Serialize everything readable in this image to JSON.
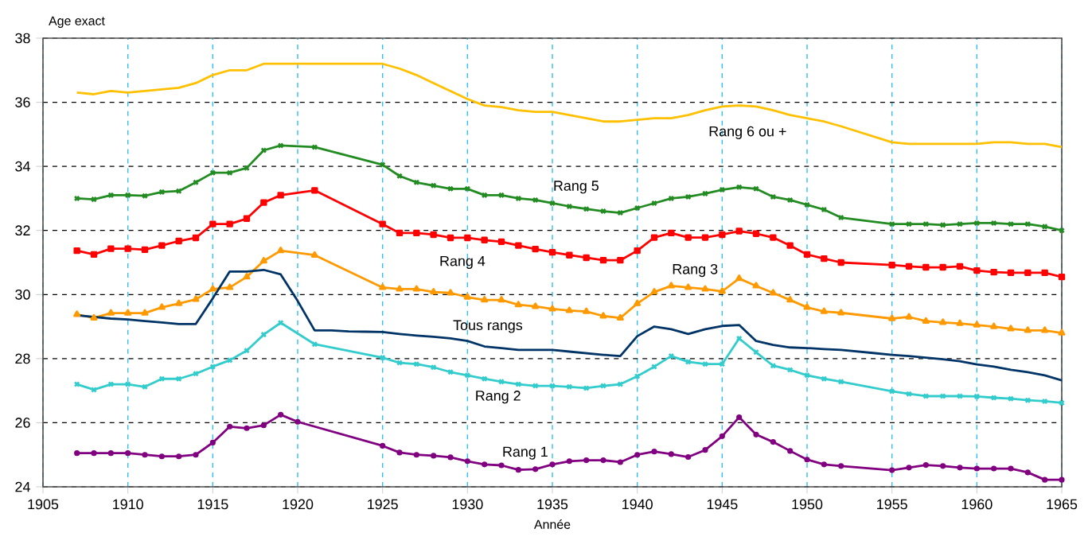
{
  "chart_data": {
    "type": "line",
    "xlabel": "Année",
    "ylabel": "Age exact",
    "x": [
      1907,
      1908,
      1909,
      1910,
      1911,
      1912,
      1913,
      1914,
      1915,
      1916,
      1917,
      1918,
      1919,
      1920,
      1921,
      1922,
      1923,
      1924,
      1925,
      1926,
      1927,
      1928,
      1929,
      1930,
      1931,
      1932,
      1933,
      1934,
      1935,
      1936,
      1937,
      1938,
      1939,
      1940,
      1941,
      1942,
      1943,
      1944,
      1945,
      1946,
      1947,
      1948,
      1949,
      1950,
      1951,
      1952,
      1953,
      1954,
      1955,
      1956,
      1957,
      1958,
      1959,
      1960,
      1961,
      1962,
      1963,
      1964,
      1965
    ],
    "xlim": [
      1905,
      1965
    ],
    "xticks": [
      1905,
      1910,
      1915,
      1920,
      1925,
      1930,
      1935,
      1940,
      1945,
      1950,
      1955,
      1960,
      1965
    ],
    "ylim": [
      24,
      38
    ],
    "yticks": [
      24,
      26,
      28,
      30,
      32,
      34,
      36,
      38
    ],
    "grid": true,
    "legend": false,
    "series": [
      {
        "name": "Rang 6 ou +",
        "color": "#ffc000",
        "marker": "none",
        "x": [
          1907,
          1908,
          1909,
          1910,
          1911,
          1912,
          1913,
          1914,
          1915,
          1916,
          1917,
          1918,
          1919,
          1925,
          1926,
          1927,
          1928,
          1929,
          1930,
          1931,
          1932,
          1933,
          1934,
          1935,
          1936,
          1937,
          1938,
          1939,
          1940,
          1941,
          1942,
          1943,
          1944,
          1945,
          1946,
          1947,
          1948,
          1949,
          1950,
          1951,
          1952,
          1955,
          1956,
          1957,
          1958,
          1959,
          1960,
          1961,
          1962,
          1963,
          1964,
          1965
        ],
        "values": [
          36.3,
          36.25,
          36.35,
          36.3,
          36.35,
          36.4,
          36.45,
          36.6,
          36.85,
          37.0,
          37.0,
          37.2,
          37.2,
          37.2,
          37.05,
          36.85,
          36.6,
          36.35,
          36.1,
          35.9,
          35.85,
          35.75,
          35.7,
          35.7,
          35.6,
          35.5,
          35.4,
          35.4,
          35.45,
          35.5,
          35.5,
          35.6,
          35.75,
          35.87,
          35.9,
          35.87,
          35.75,
          35.6,
          35.5,
          35.4,
          35.25,
          34.75,
          34.7,
          34.7,
          34.7,
          34.7,
          34.7,
          34.75,
          34.75,
          34.7,
          34.7,
          34.6
        ]
      },
      {
        "name": "Rang 5",
        "color": "#228b22",
        "marker": "cross",
        "x": [
          1907,
          1908,
          1909,
          1910,
          1911,
          1912,
          1913,
          1914,
          1915,
          1916,
          1917,
          1918,
          1919,
          1921,
          1925,
          1926,
          1927,
          1928,
          1929,
          1930,
          1931,
          1932,
          1933,
          1934,
          1935,
          1936,
          1937,
          1938,
          1939,
          1940,
          1941,
          1942,
          1943,
          1944,
          1945,
          1946,
          1947,
          1948,
          1949,
          1950,
          1951,
          1952,
          1955,
          1956,
          1957,
          1958,
          1959,
          1960,
          1961,
          1962,
          1963,
          1964,
          1965
        ],
        "values": [
          33.0,
          32.97,
          33.1,
          33.1,
          33.08,
          33.2,
          33.23,
          33.5,
          33.8,
          33.8,
          33.95,
          34.5,
          34.65,
          34.6,
          34.05,
          33.7,
          33.5,
          33.4,
          33.3,
          33.3,
          33.1,
          33.1,
          33.0,
          32.95,
          32.85,
          32.75,
          32.67,
          32.6,
          32.55,
          32.7,
          32.85,
          33.0,
          33.05,
          33.15,
          33.27,
          33.35,
          33.3,
          33.05,
          32.95,
          32.8,
          32.65,
          32.4,
          32.2,
          32.2,
          32.2,
          32.17,
          32.2,
          32.23,
          32.23,
          32.2,
          32.2,
          32.12,
          32.0
        ]
      },
      {
        "name": "Rang 4",
        "color": "#ff0000",
        "marker": "square",
        "x": [
          1907,
          1908,
          1909,
          1910,
          1911,
          1912,
          1913,
          1914,
          1915,
          1916,
          1917,
          1918,
          1919,
          1921,
          1925,
          1926,
          1927,
          1928,
          1929,
          1930,
          1931,
          1932,
          1933,
          1934,
          1935,
          1936,
          1937,
          1938,
          1939,
          1940,
          1941,
          1942,
          1943,
          1944,
          1945,
          1946,
          1947,
          1948,
          1949,
          1950,
          1951,
          1952,
          1955,
          1956,
          1957,
          1958,
          1959,
          1960,
          1961,
          1962,
          1963,
          1964,
          1965
        ],
        "values": [
          31.37,
          31.25,
          31.43,
          31.43,
          31.4,
          31.53,
          31.67,
          31.77,
          32.2,
          32.2,
          32.37,
          32.87,
          33.1,
          33.25,
          32.2,
          31.92,
          31.92,
          31.87,
          31.77,
          31.77,
          31.7,
          31.65,
          31.53,
          31.42,
          31.32,
          31.23,
          31.15,
          31.07,
          31.07,
          31.37,
          31.78,
          31.92,
          31.78,
          31.78,
          31.87,
          31.98,
          31.9,
          31.78,
          31.53,
          31.25,
          31.12,
          31.0,
          30.92,
          30.88,
          30.85,
          30.85,
          30.88,
          30.75,
          30.7,
          30.68,
          30.68,
          30.68,
          30.55
        ]
      },
      {
        "name": "Rang 3",
        "color": "#ff9900",
        "marker": "triangle",
        "x": [
          1907,
          1908,
          1909,
          1910,
          1911,
          1912,
          1913,
          1914,
          1915,
          1916,
          1917,
          1918,
          1919,
          1921,
          1925,
          1926,
          1927,
          1928,
          1929,
          1930,
          1931,
          1932,
          1933,
          1934,
          1935,
          1936,
          1937,
          1938,
          1939,
          1940,
          1941,
          1942,
          1943,
          1944,
          1945,
          1946,
          1947,
          1948,
          1949,
          1950,
          1951,
          1952,
          1955,
          1956,
          1957,
          1958,
          1959,
          1960,
          1961,
          1962,
          1963,
          1964,
          1965
        ],
        "values": [
          29.38,
          29.27,
          29.42,
          29.42,
          29.42,
          29.6,
          29.72,
          29.85,
          30.17,
          30.22,
          30.55,
          31.05,
          31.37,
          31.23,
          30.22,
          30.17,
          30.17,
          30.08,
          30.05,
          29.92,
          29.83,
          29.83,
          29.68,
          29.63,
          29.55,
          29.5,
          29.47,
          29.33,
          29.27,
          29.72,
          30.08,
          30.27,
          30.22,
          30.17,
          30.1,
          30.5,
          30.27,
          30.05,
          29.83,
          29.6,
          29.47,
          29.43,
          29.25,
          29.3,
          29.17,
          29.13,
          29.1,
          29.05,
          29.0,
          28.93,
          28.88,
          28.88,
          28.8
        ]
      },
      {
        "name": "Tous rangs",
        "color": "#003366",
        "marker": "none",
        "values": [
          29.35,
          29.3,
          29.25,
          29.22,
          29.17,
          29.13,
          29.08,
          29.08,
          29.88,
          30.72,
          30.72,
          30.77,
          30.63,
          29.8,
          28.88,
          28.88,
          28.85,
          28.84,
          28.83,
          28.77,
          28.72,
          28.68,
          28.63,
          28.55,
          28.38,
          28.33,
          28.27,
          28.27,
          28.27,
          28.22,
          28.17,
          28.12,
          28.08,
          28.7,
          29.0,
          28.92,
          28.77,
          28.92,
          29.02,
          29.05,
          28.55,
          28.43,
          28.35,
          28.33,
          28.3,
          28.27,
          28.22,
          28.17,
          28.12,
          28.08,
          28.03,
          27.98,
          27.92,
          27.82,
          27.75,
          27.65,
          27.58,
          27.48,
          27.32
        ]
      },
      {
        "name": "Rang 2",
        "color": "#33cccc",
        "marker": "cross",
        "x": [
          1907,
          1908,
          1909,
          1910,
          1911,
          1912,
          1913,
          1914,
          1915,
          1916,
          1917,
          1918,
          1919,
          1921,
          1925,
          1926,
          1927,
          1928,
          1929,
          1930,
          1931,
          1932,
          1933,
          1934,
          1935,
          1936,
          1937,
          1938,
          1939,
          1940,
          1941,
          1942,
          1943,
          1944,
          1945,
          1946,
          1947,
          1948,
          1949,
          1950,
          1951,
          1952,
          1955,
          1956,
          1957,
          1958,
          1959,
          1960,
          1961,
          1962,
          1963,
          1964,
          1965
        ],
        "values": [
          27.2,
          27.03,
          27.2,
          27.2,
          27.12,
          27.37,
          27.37,
          27.53,
          27.75,
          27.95,
          28.25,
          28.75,
          29.12,
          28.45,
          28.03,
          27.87,
          27.83,
          27.73,
          27.58,
          27.48,
          27.37,
          27.28,
          27.2,
          27.15,
          27.15,
          27.12,
          27.08,
          27.15,
          27.2,
          27.45,
          27.75,
          28.08,
          27.9,
          27.83,
          27.83,
          28.63,
          28.2,
          27.78,
          27.65,
          27.48,
          27.37,
          27.28,
          26.98,
          26.9,
          26.83,
          26.83,
          26.83,
          26.82,
          26.78,
          26.75,
          26.7,
          26.67,
          26.62
        ]
      },
      {
        "name": "Rang 1",
        "color": "#800080",
        "marker": "circle",
        "x": [
          1907,
          1908,
          1909,
          1910,
          1911,
          1912,
          1913,
          1914,
          1915,
          1916,
          1917,
          1918,
          1919,
          1920,
          1925,
          1926,
          1927,
          1928,
          1929,
          1930,
          1931,
          1932,
          1933,
          1934,
          1935,
          1936,
          1937,
          1938,
          1939,
          1940,
          1941,
          1942,
          1943,
          1944,
          1945,
          1946,
          1947,
          1948,
          1949,
          1950,
          1951,
          1952,
          1955,
          1956,
          1957,
          1958,
          1959,
          1960,
          1961,
          1962,
          1963,
          1964,
          1965
        ],
        "values": [
          25.05,
          25.05,
          25.05,
          25.05,
          25.0,
          24.95,
          24.95,
          25.0,
          25.38,
          25.88,
          25.83,
          25.92,
          26.25,
          26.03,
          25.28,
          25.07,
          25.0,
          24.97,
          24.92,
          24.8,
          24.7,
          24.67,
          24.53,
          24.55,
          24.7,
          24.8,
          24.83,
          24.83,
          24.77,
          25.0,
          25.1,
          25.02,
          24.93,
          25.15,
          25.58,
          26.17,
          25.63,
          25.4,
          25.12,
          24.85,
          24.7,
          24.65,
          24.52,
          24.6,
          24.68,
          24.65,
          24.6,
          24.57,
          24.57,
          24.57,
          24.45,
          24.22,
          24.22
        ]
      }
    ]
  }
}
